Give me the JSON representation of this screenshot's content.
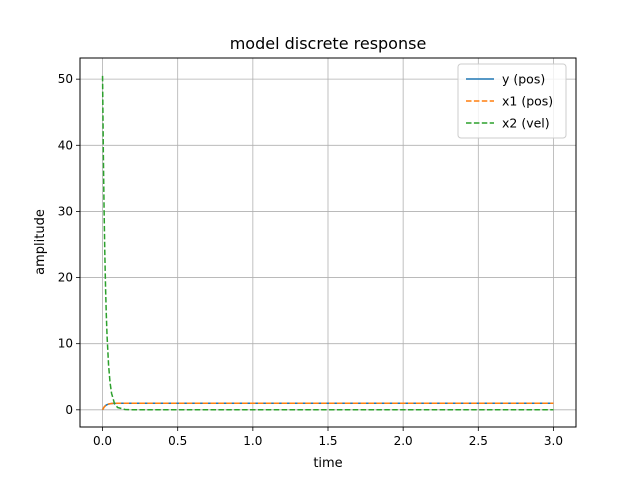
{
  "chart_data": {
    "type": "line",
    "title": "model discrete response",
    "xlabel": "time",
    "ylabel": "amplitude",
    "xlim": [
      -0.15,
      3.15
    ],
    "ylim": [
      -2.6,
      53.2
    ],
    "xticks": [
      0.0,
      0.5,
      1.0,
      1.5,
      2.0,
      2.5,
      3.0
    ],
    "xtick_labels": [
      "0.0",
      "0.5",
      "1.0",
      "1.5",
      "2.0",
      "2.5",
      "3.0"
    ],
    "yticks": [
      0,
      10,
      20,
      30,
      40,
      50
    ],
    "ytick_labels": [
      "0",
      "10",
      "20",
      "30",
      "40",
      "50"
    ],
    "grid": true,
    "legend_position": "top-right",
    "series": [
      {
        "name": "y (pos)",
        "color": "#1f77b4",
        "style": "solid",
        "x": [
          0.0,
          0.01,
          0.02,
          0.03,
          0.04,
          0.05,
          0.06,
          0.08,
          0.1,
          0.15,
          0.2,
          0.5,
          1.0,
          2.0,
          3.0
        ],
        "y": [
          0.0,
          0.4,
          0.64,
          0.78,
          0.87,
          0.92,
          0.95,
          0.98,
          0.99,
          1.0,
          1.0,
          1.0,
          1.0,
          1.0,
          1.0
        ]
      },
      {
        "name": "x1 (pos)",
        "color": "#ff7f0e",
        "style": "dashed",
        "x": [
          0.0,
          0.01,
          0.02,
          0.03,
          0.04,
          0.05,
          0.06,
          0.08,
          0.1,
          0.15,
          0.2,
          0.5,
          1.0,
          2.0,
          3.0
        ],
        "y": [
          0.0,
          0.4,
          0.64,
          0.78,
          0.87,
          0.92,
          0.95,
          0.98,
          0.99,
          1.0,
          1.0,
          1.0,
          1.0,
          1.0,
          1.0
        ]
      },
      {
        "name": "x2 (vel)",
        "color": "#2ca02c",
        "style": "dashed",
        "x": [
          0.0,
          0.005,
          0.01,
          0.015,
          0.02,
          0.025,
          0.03,
          0.04,
          0.05,
          0.06,
          0.08,
          0.1,
          0.15,
          0.2,
          0.5,
          1.0,
          2.0,
          3.0
        ],
        "y": [
          50.5,
          39.3,
          30.6,
          23.8,
          18.5,
          14.4,
          11.2,
          6.8,
          4.1,
          2.5,
          0.9,
          0.35,
          0.05,
          0.0,
          0.0,
          0.0,
          0.0,
          0.0
        ]
      }
    ]
  }
}
